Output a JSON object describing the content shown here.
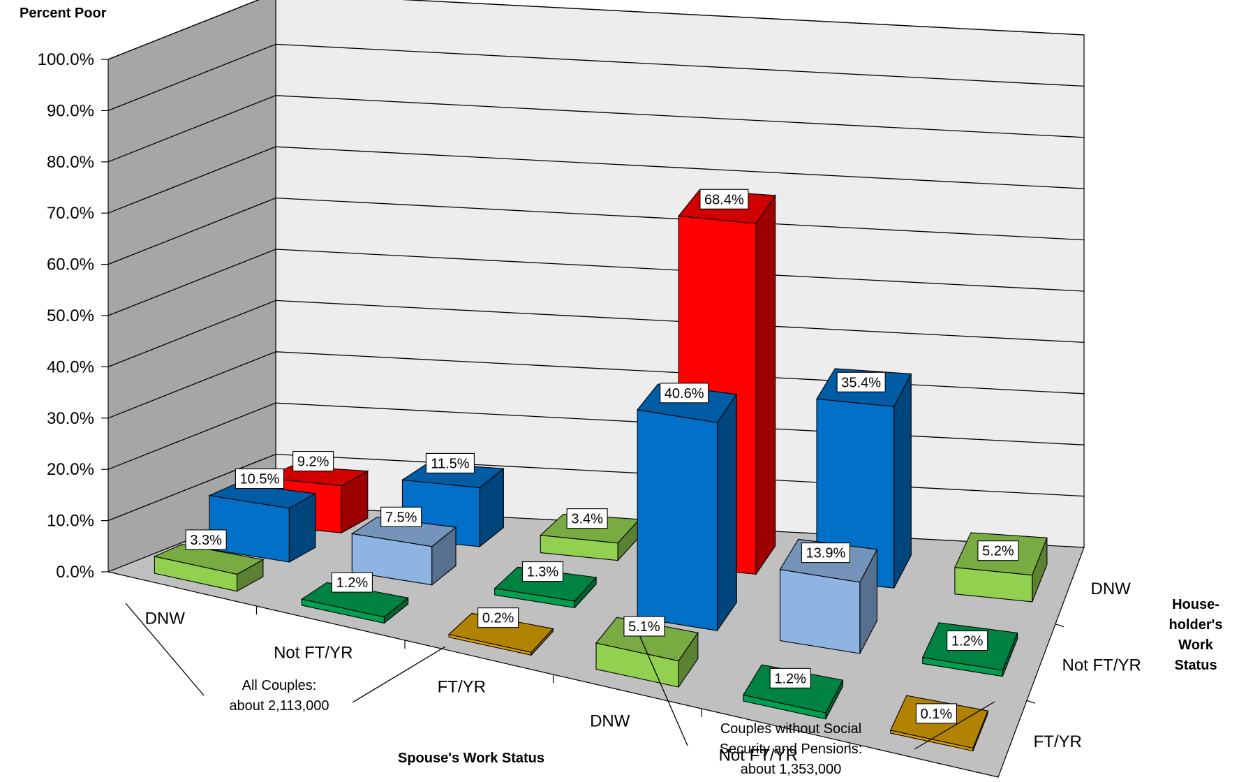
{
  "chart_data": {
    "type": "bar",
    "subtype": "3d-column",
    "ylabel": "Percent Poor",
    "xlabel": "Spouse's Work Status",
    "zlabel": "House-holder's Work Status",
    "zlabel_lines": [
      "House-",
      "holder's",
      "Work",
      "Status"
    ],
    "ylim": [
      0,
      100
    ],
    "yticks": [
      "0.0%",
      "10.0%",
      "20.0%",
      "30.0%",
      "40.0%",
      "50.0%",
      "60.0%",
      "70.0%",
      "80.0%",
      "90.0%",
      "100.0%"
    ],
    "grid": true,
    "categories": [
      "DNW",
      "Not FT/YR",
      "FT/YR",
      "DNW",
      "Not FT/YR",
      "FT/YR"
    ],
    "groups": [
      {
        "name": "All Couples: about 2,113,000",
        "lines": [
          "All Couples:",
          "about 2,113,000"
        ]
      },
      {
        "name": "Couples without Social Security and Pensions: about 1,353,000",
        "lines": [
          "Couples without Social",
          "Security and Pensions:",
          "about 1,353,000"
        ]
      }
    ],
    "series": [
      {
        "name": "DNW",
        "values": [
          9.2,
          11.5,
          3.4,
          68.4,
          35.4,
          5.2
        ],
        "labels": [
          "9.2%",
          "11.5%",
          "3.4%",
          "68.4%",
          "35.4%",
          "5.2%"
        ]
      },
      {
        "name": "Not FT/YR",
        "values": [
          10.5,
          7.5,
          1.3,
          40.6,
          13.9,
          1.2
        ],
        "labels": [
          "10.5%",
          "7.5%",
          "1.3%",
          "40.6%",
          "13.9%",
          "1.2%"
        ]
      },
      {
        "name": "FT/YR",
        "values": [
          3.3,
          1.2,
          0.2,
          5.1,
          1.2,
          0.1
        ],
        "labels": [
          "3.3%",
          "1.2%",
          "0.2%",
          "5.1%",
          "1.2%",
          "0.1%"
        ]
      }
    ],
    "colors": {
      "red": "#ff0000",
      "blue": "#0070c8",
      "lightblue": "#8db4e3",
      "lightgreen": "#92d050",
      "darkgreen": "#00a050",
      "gold": "#d8a000",
      "floor": "#c0c0c0",
      "wall": "#ededed",
      "leftwall": "#a6a6a6"
    },
    "bar_colors": [
      [
        "red",
        "blue",
        "lightgreen",
        "red",
        "blue",
        "lightgreen"
      ],
      [
        "blue",
        "lightblue",
        "darkgreen",
        "blue",
        "lightblue",
        "darkgreen"
      ],
      [
        "lightgreen",
        "darkgreen",
        "gold",
        "lightgreen",
        "darkgreen",
        "gold"
      ]
    ]
  }
}
